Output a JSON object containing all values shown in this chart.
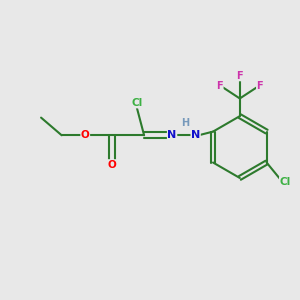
{
  "background_color": "#e8e8e8",
  "bond_color": "#2d7a2d",
  "atom_colors": {
    "Cl": "#3cb043",
    "O": "#ff0000",
    "N": "#1010cc",
    "H": "#7799bb",
    "F": "#cc33aa"
  },
  "figsize": [
    3.0,
    3.0
  ],
  "dpi": 100,
  "xlim": [
    0,
    10
  ],
  "ylim": [
    0,
    10
  ]
}
